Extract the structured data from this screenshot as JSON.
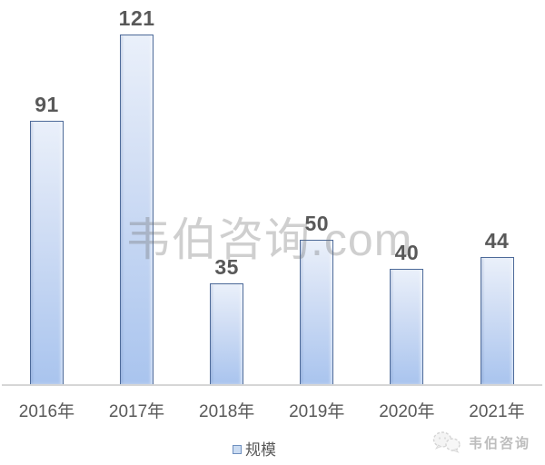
{
  "chart_data": {
    "type": "bar",
    "categories": [
      "2016年",
      "2017年",
      "2018年",
      "2019年",
      "2020年",
      "2021年"
    ],
    "values": [
      91,
      121,
      35,
      50,
      40,
      44
    ],
    "series": [
      {
        "name": "规模",
        "values": [
          91,
          121,
          35,
          50,
          40,
          44
        ]
      }
    ],
    "title": "",
    "xlabel": "",
    "ylabel": "",
    "ylim": [
      0,
      121
    ],
    "grid": false,
    "value_labels_shown": true,
    "legend_position": "bottom-center",
    "colors": {
      "bar_fill_top": "#eaf0fa",
      "bar_fill_bottom": "#a9c4ee",
      "bar_border": "#4d6a99",
      "value_label": "#595959",
      "axis_label": "#595959",
      "baseline": "#d6d6d6",
      "legend_swatch_border": "#6f90bf",
      "legend_swatch_fill": "#cbdcf2",
      "watermark": "#c9c9c9"
    }
  },
  "legend": {
    "label": "规模"
  },
  "watermark": {
    "text": "韦伯咨询.com"
  },
  "footer": {
    "brand": "韦伯咨询",
    "icon": "wechat-icon"
  }
}
